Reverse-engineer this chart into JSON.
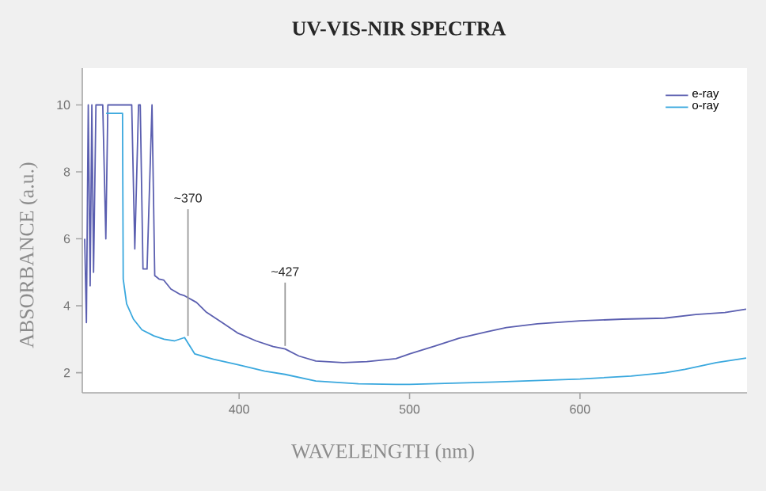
{
  "chart_data": {
    "type": "line",
    "title": "UV-VIS-NIR SPECTRA",
    "xlabel": "WAVELENGTH (nm)",
    "ylabel": "ABSORBANCE (a.u.)",
    "xlim": [
      308,
      698
    ],
    "ylim": [
      1.4,
      11.1
    ],
    "xticks": [
      400,
      500,
      600
    ],
    "yticks": [
      2,
      4,
      6,
      8,
      10
    ],
    "grid": false,
    "legend": "top right",
    "marker": "none",
    "line_style": "solid",
    "series": [
      {
        "name": "e-ray",
        "color": "#5b5fb0",
        "x": [
          309.4,
          310.4,
          311.5,
          312.6,
          313.6,
          314.6,
          316,
          318,
          320,
          321.8,
          323,
          330,
          335,
          337,
          338.8,
          341,
          342,
          343.6,
          346,
          348.9,
          350.5,
          353,
          355.7,
          360,
          365,
          368,
          375,
          380.5,
          390,
          399,
          410,
          420,
          427,
          435,
          445,
          461,
          475,
          492,
          500,
          515,
          529,
          545,
          556.8,
          575,
          600,
          625,
          649.5,
          668,
          685,
          697.5
        ],
        "values": [
          6,
          3.5,
          10,
          4.6,
          10,
          5,
          10,
          10,
          10,
          6,
          10,
          10,
          10,
          10,
          5.7,
          10,
          10,
          5.1,
          5.1,
          10,
          4.9,
          4.8,
          4.77,
          4.5,
          4.35,
          4.3,
          4.1,
          3.82,
          3.5,
          3.19,
          2.95,
          2.78,
          2.71,
          2.5,
          2.35,
          2.3,
          2.33,
          2.42,
          2.56,
          2.8,
          3.03,
          3.22,
          3.35,
          3.46,
          3.55,
          3.6,
          3.63,
          3.74,
          3.8,
          3.9
        ]
      },
      {
        "name": "o-ray",
        "color": "#3aa8de",
        "x": [
          322,
          331.6,
          332,
          334,
          338,
          343,
          350,
          356,
          362,
          368,
          374,
          385,
          399,
          415,
          427,
          445,
          470,
          492,
          500,
          550,
          600,
          630,
          650,
          661.6,
          680,
          697.5
        ],
        "values": [
          9.75,
          9.75,
          4.8,
          4.06,
          3.6,
          3.28,
          3.1,
          3,
          2.95,
          3.05,
          2.56,
          2.4,
          2.24,
          2.05,
          1.95,
          1.75,
          1.67,
          1.65,
          1.65,
          1.72,
          1.81,
          1.9,
          2.0,
          2.1,
          2.3,
          2.44
        ]
      }
    ],
    "annotations": [
      {
        "text": "~370",
        "x": 370,
        "y": 3.1
      },
      {
        "text": "~427",
        "x": 427,
        "y": 2.8
      }
    ]
  }
}
